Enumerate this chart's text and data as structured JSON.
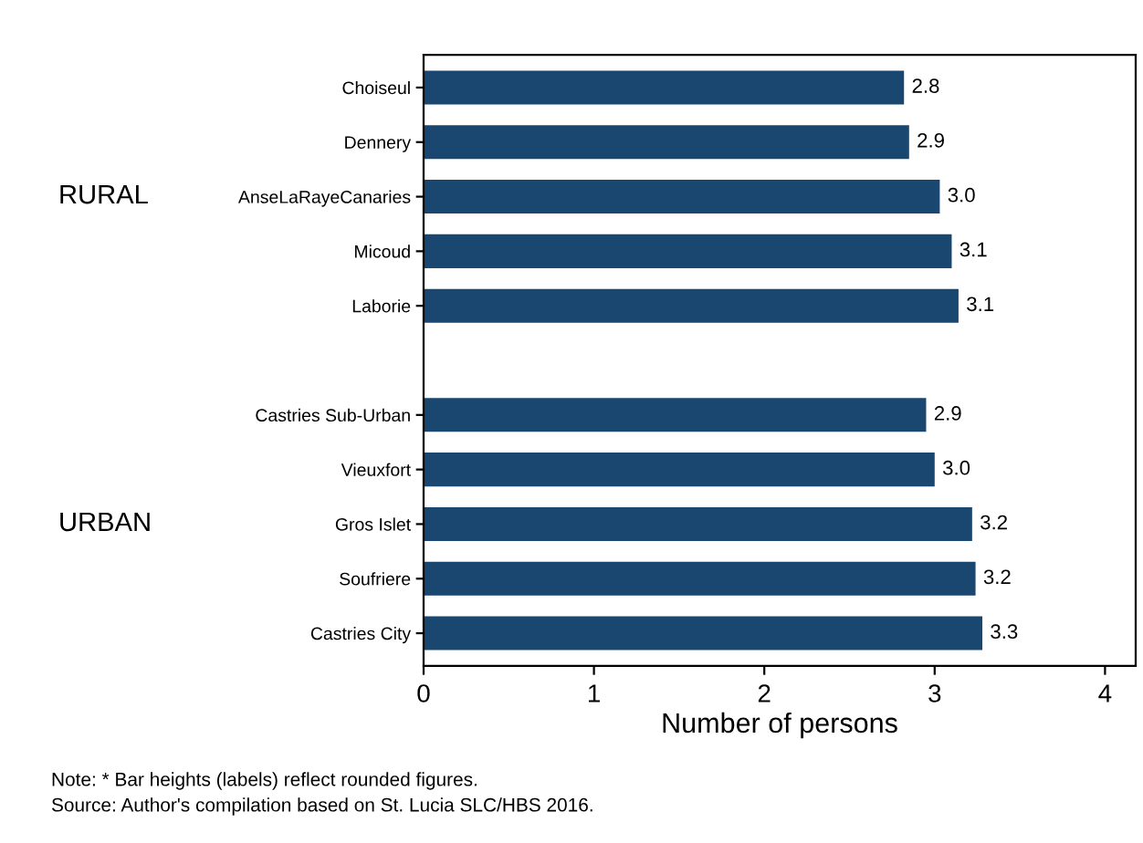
{
  "chart_data": {
    "type": "bar",
    "orientation": "horizontal",
    "categories": [
      "Choiseul",
      "Dennery",
      "AnseLaRayeCanaries",
      "Micoud",
      "Laborie",
      null,
      "Castries Sub-Urban",
      "Vieuxfort",
      "Gros Islet",
      "Soufriere",
      "Castries City"
    ],
    "values": [
      2.82,
      2.85,
      3.03,
      3.1,
      3.14,
      null,
      2.95,
      3.0,
      3.22,
      3.24,
      3.28
    ],
    "value_labels": [
      "2.8",
      "2.9",
      "3.0",
      "3.1",
      "3.1",
      null,
      "2.9",
      "3.0",
      "3.2",
      "3.2",
      "3.3"
    ],
    "color": "#1a476f",
    "xlim": [
      0,
      4.18
    ],
    "xticks": [
      0,
      1,
      2,
      3,
      4
    ],
    "xlabel": "Number of persons",
    "grid": false,
    "legend": false,
    "annotations": [
      "RURAL",
      "URBAN",
      "Note: * Bar heights (labels) reflect rounded figures.",
      "Source: Author's compilation based on St. Lucia SLC/HBS 2016."
    ]
  }
}
